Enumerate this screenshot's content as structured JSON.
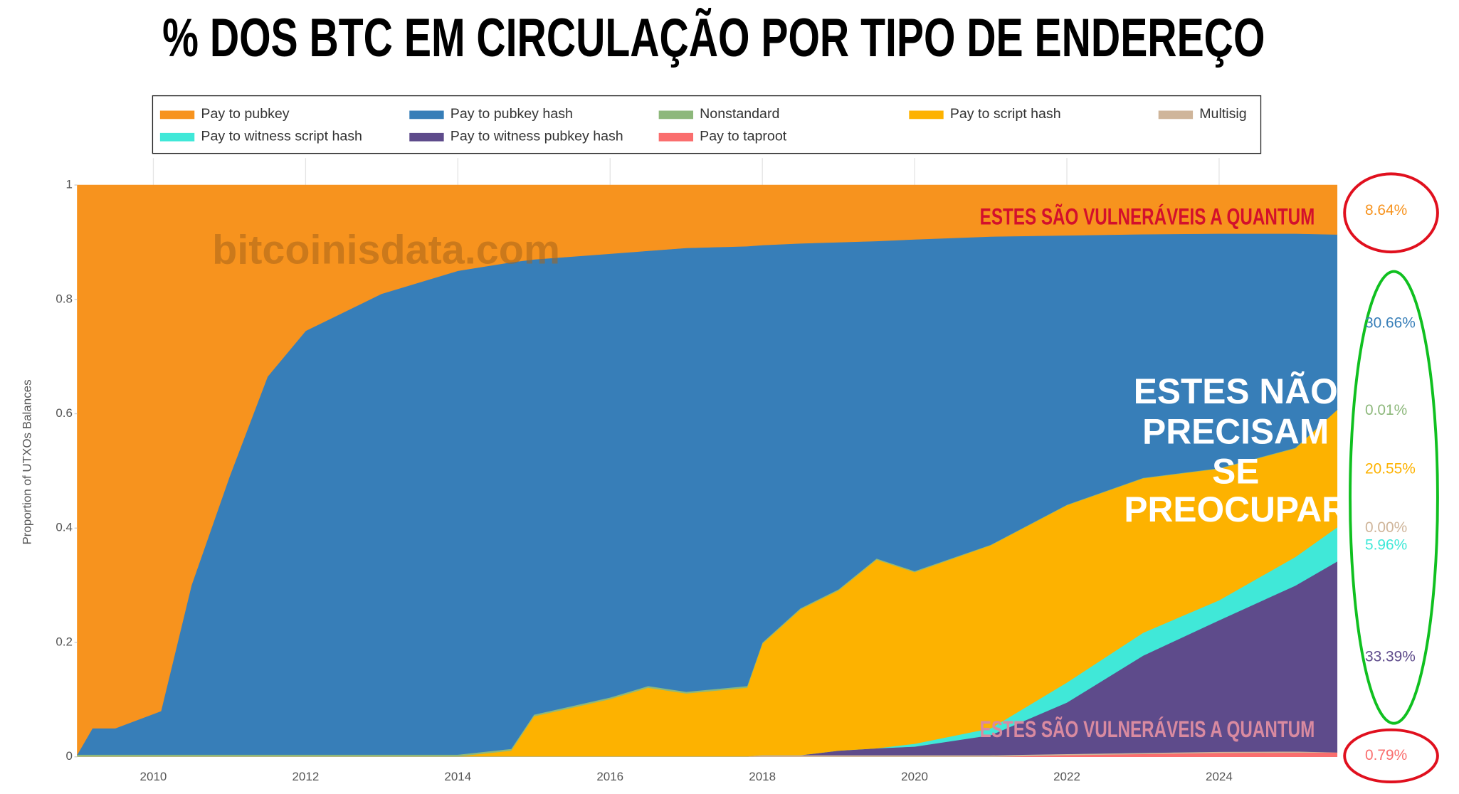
{
  "chart_data": {
    "type": "stacked_area",
    "title": "% DOS BTC EM CIRCULAÇÃO POR TIPO DE ENDEREÇO",
    "watermark": "bitcoinisdata.com",
    "y_label": "Proportion of UTXOs Balances",
    "annotations": {
      "top": "ESTES SÃO VULNERÁVEIS A QUANTUM",
      "middle": [
        "ESTES NÃO",
        "PRECISAM",
        "SE",
        "PREOCUPAR"
      ],
      "bottom": "ESTES SÃO VULNERÁVEIS A QUANTUM"
    },
    "x": [
      2009,
      2009.2,
      2009.5,
      2010,
      2010.1,
      2010.5,
      2011,
      2011.5,
      2012,
      2013,
      2014,
      2014.7,
      2015,
      2016,
      2016.5,
      2017,
      2017.8,
      2018,
      2018.5,
      2019,
      2019.5,
      2020,
      2021,
      2022,
      2023,
      2024,
      2025,
      2025.55
    ],
    "xlim": [
      2009,
      2025.55
    ],
    "xticks": [
      2010,
      2012,
      2014,
      2016,
      2018,
      2020,
      2022,
      2024
    ],
    "ylim": [
      0,
      1
    ],
    "yticks": [
      0,
      0.2,
      0.4,
      0.6,
      0.8,
      1
    ],
    "series": [
      {
        "name": "Pay to pubkey",
        "color": "#f7931e",
        "end_label": "8.64%",
        "values": [
          0.996,
          0.95,
          0.95,
          0.925,
          0.92,
          0.7,
          0.51,
          0.335,
          0.255,
          0.19,
          0.15,
          0.135,
          0.13,
          0.12,
          0.115,
          0.11,
          0.107,
          0.105,
          0.102,
          0.1,
          0.098,
          0.095,
          0.09,
          0.088,
          0.086,
          0.085,
          0.085,
          0.0864
        ]
      },
      {
        "name": "Pay to pubkey hash",
        "color": "#377eb8",
        "end_label": "30.66%",
        "values": [
          0,
          0.046,
          0.046,
          0.071,
          0.076,
          0.296,
          0.486,
          0.661,
          0.741,
          0.806,
          0.846,
          0.851,
          0.796,
          0.776,
          0.761,
          0.776,
          0.769,
          0.695,
          0.638,
          0.607,
          0.555,
          0.58,
          0.539,
          0.471,
          0.426,
          0.41,
          0.3745,
          0.3066
        ]
      },
      {
        "name": "Nonstandard",
        "color": "#8db87b",
        "end_label": "0.01%",
        "values": [
          0.003,
          0.003,
          0.003,
          0.003,
          0.003,
          0.003,
          0.003,
          0.003,
          0.003,
          0.003,
          0.003,
          0.003,
          0.003,
          0.003,
          0.003,
          0.003,
          0.003,
          0.002,
          0.002,
          0.002,
          0.002,
          0.002,
          0.001,
          0.001,
          0.001,
          0.001,
          0.001,
          0.0001
        ]
      },
      {
        "name": "Pay to script hash",
        "color": "#fdb200",
        "end_label": "20.55%",
        "values": [
          0,
          0,
          0,
          0,
          0,
          0,
          0,
          0,
          0,
          0,
          0,
          0.01,
          0.07,
          0.1,
          0.12,
          0.11,
          0.12,
          0.195,
          0.255,
          0.28,
          0.33,
          0.3,
          0.32,
          0.31,
          0.27,
          0.23,
          0.19,
          0.2055
        ]
      },
      {
        "name": "Multisig",
        "color": "#cfb59a",
        "end_label": "0.00%",
        "values": [
          0.001,
          0.001,
          0.001,
          0.001,
          0.001,
          0.001,
          0.001,
          0.001,
          0.001,
          0.001,
          0.001,
          0.001,
          0.001,
          0.001,
          0.001,
          0.001,
          0.001,
          0.003,
          0.003,
          0.003,
          0.003,
          0.003,
          0.003,
          0.002,
          0.002,
          0.002,
          0.002,
          0
        ]
      },
      {
        "name": "Pay to witness script hash",
        "color": "#40e8d8",
        "end_label": "5.96%",
        "values": [
          0,
          0,
          0,
          0,
          0,
          0,
          0,
          0,
          0,
          0,
          0,
          0,
          0,
          0,
          0,
          0,
          0,
          0,
          0,
          0,
          0,
          0.005,
          0.012,
          0.035,
          0.04,
          0.035,
          0.05,
          0.0596
        ]
      },
      {
        "name": "Pay to witness pubkey hash",
        "color": "#5e4b8b",
        "end_label": "33.39%",
        "values": [
          0,
          0,
          0,
          0,
          0,
          0,
          0,
          0,
          0,
          0,
          0,
          0,
          0,
          0,
          0,
          0,
          0,
          0,
          0,
          0.008,
          0.012,
          0.015,
          0.035,
          0.09,
          0.17,
          0.23,
          0.29,
          0.3339
        ]
      },
      {
        "name": "Pay to taproot",
        "color": "#fa6e6e",
        "end_label": "0.79%",
        "values": [
          0,
          0,
          0,
          0,
          0,
          0,
          0,
          0,
          0,
          0,
          0,
          0,
          0,
          0,
          0,
          0,
          0,
          0,
          0,
          0,
          0,
          0,
          0,
          0.003,
          0.005,
          0.007,
          0.0075,
          0.0079
        ]
      }
    ]
  }
}
